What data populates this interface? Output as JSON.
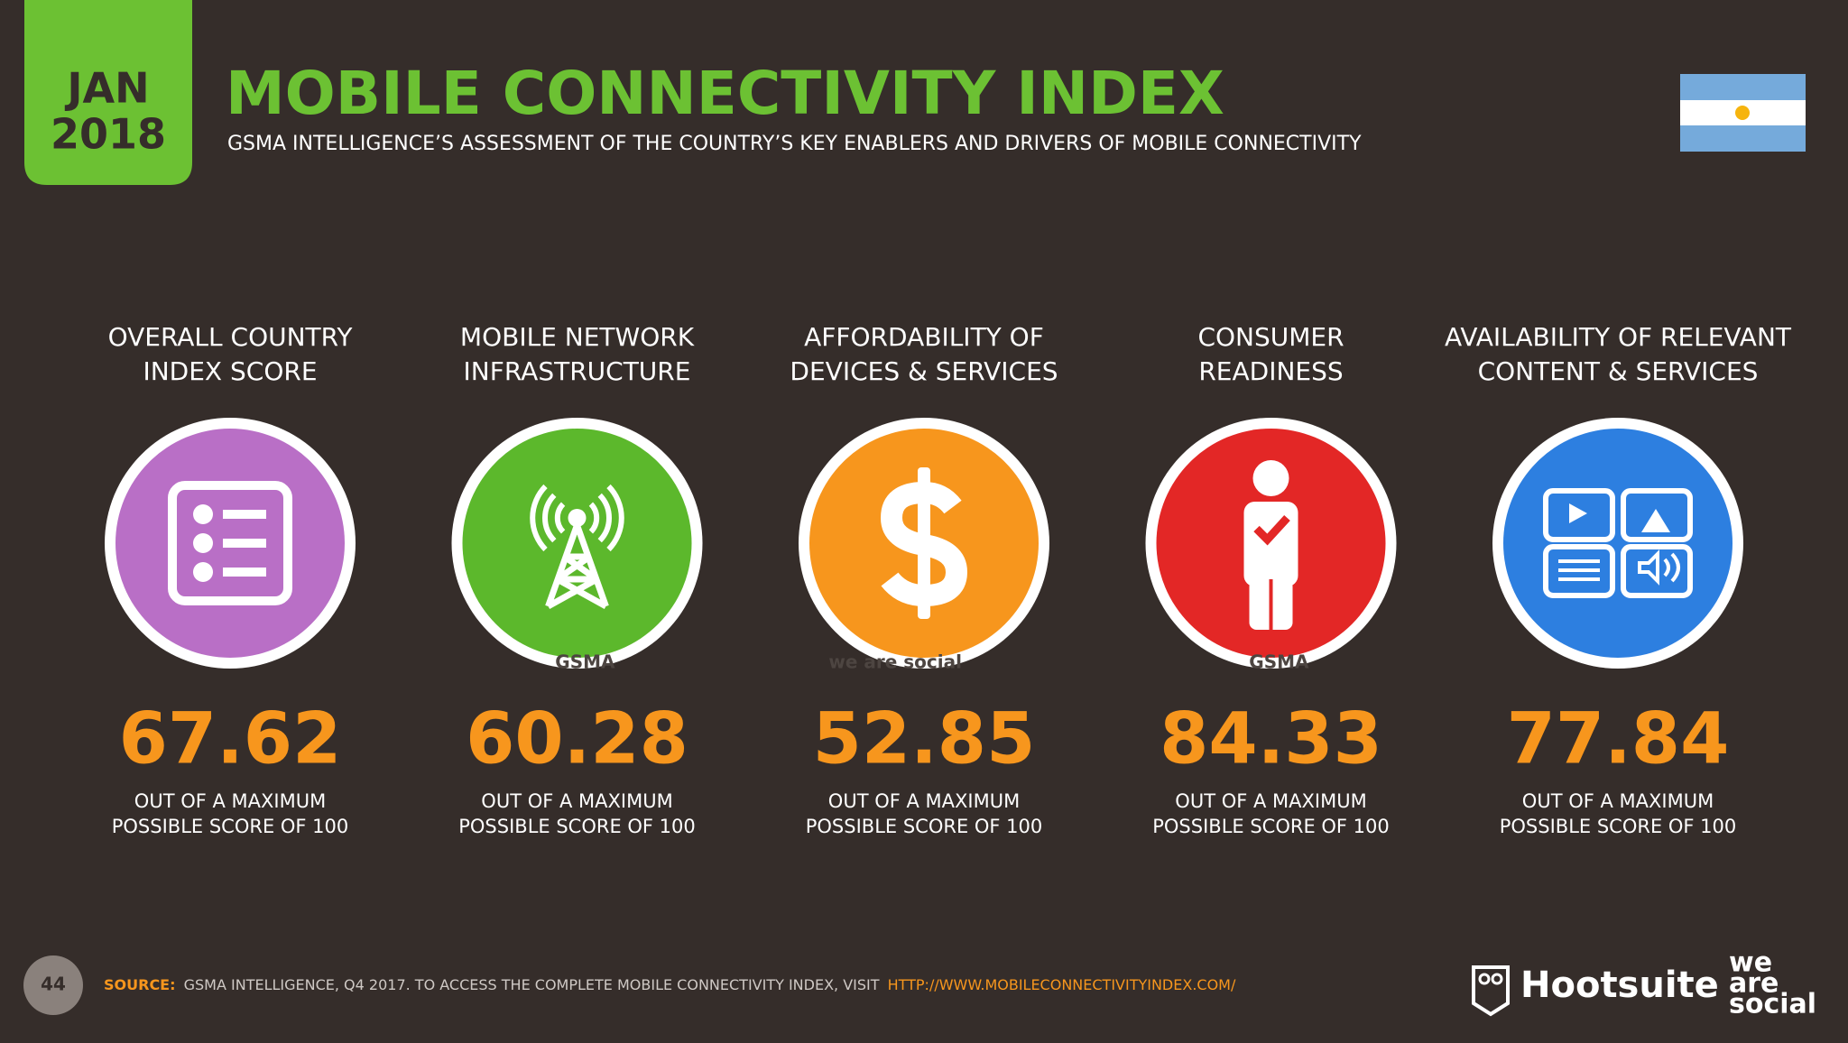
{
  "header": {
    "month": "JAN",
    "year": "2018",
    "title": "MOBILE CONNECTIVITY INDEX",
    "subtitle": "GSMA INTELLIGENCE’S ASSESSMENT OF THE COUNTRY’S KEY ENABLERS AND DRIVERS OF MOBILE CONNECTIVITY"
  },
  "metrics": [
    {
      "label": [
        "OVERALL COUNTRY",
        "INDEX SCORE"
      ],
      "score": 67.62,
      "note": [
        "OUT OF A MAXIMUM",
        "POSSIBLE SCORE OF 100"
      ],
      "color": "#b96fc6"
    },
    {
      "label": [
        "MOBILE NETWORK",
        "INFRASTRUCTURE"
      ],
      "score": 60.28,
      "note": [
        "OUT OF A MAXIMUM",
        "POSSIBLE SCORE OF 100"
      ],
      "color": "#5cb82c"
    },
    {
      "label": [
        "AFFORDABILITY OF",
        "DEVICES & SERVICES"
      ],
      "score": 52.85,
      "note": [
        "OUT OF A MAXIMUM",
        "POSSIBLE SCORE OF 100"
      ],
      "color": "#f7961d"
    },
    {
      "label": [
        "CONSUMER",
        "READINESS"
      ],
      "score": 84.33,
      "note": [
        "OUT OF A MAXIMUM",
        "POSSIBLE SCORE OF 100"
      ],
      "color": "#e32726"
    },
    {
      "label": [
        "AVAILABILITY OF RELEVANT",
        "CONTENT & SERVICES"
      ],
      "score": 77.84,
      "note": [
        "OUT OF A MAXIMUM",
        "POSSIBLE SCORE OF 100"
      ],
      "color": "#2d7fe0"
    }
  ],
  "watermarks": [
    "GSMA",
    "we are social",
    "GSMA"
  ],
  "footer": {
    "page": "44",
    "source_label": "SOURCE:",
    "source": "GSMA INTELLIGENCE, Q4 2017. TO ACCESS THE COMPLETE MOBILE CONNECTIVITY INDEX, VISIT",
    "url": "HTTP://WWW.MOBILECONNECTIVITYINDEX.COM/",
    "brand": "Hootsuite",
    "logo": [
      "we",
      "are",
      "social"
    ]
  }
}
